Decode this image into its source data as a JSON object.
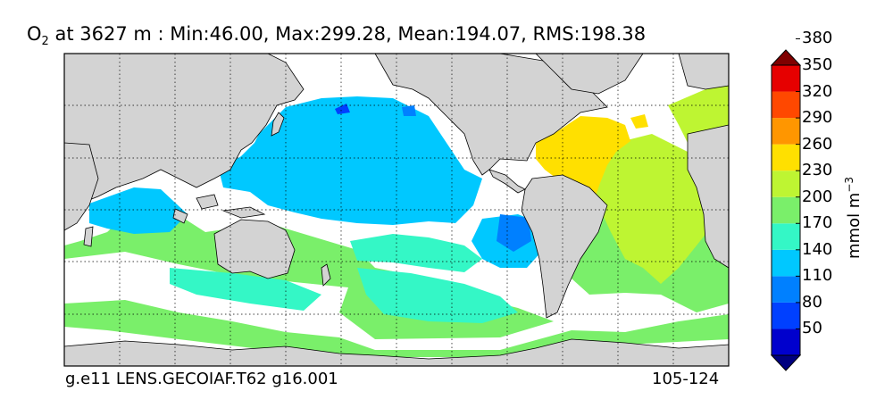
{
  "title": {
    "species": "O",
    "species_sub": "2",
    "text": " at 3627 m : Min:46.00, Max:299.28, Mean:194.07, RMS:198.38"
  },
  "footer": {
    "case": "g.e11 LENS.GECOIAF.T62 g16.001",
    "years": "105-124"
  },
  "colorbar": {
    "unit_main": "mmol m",
    "unit_exp": "−3",
    "ticks": [
      "380",
      "350",
      "320",
      "290",
      "260",
      "230",
      "200",
      "170",
      "140",
      "110",
      "80",
      "50"
    ],
    "colors": [
      "#000080",
      "#0000cd",
      "#0040ff",
      "#0080ff",
      "#00c8ff",
      "#34f7c6",
      "#7aef6a",
      "#bef532",
      "#ffe000",
      "#ff9600",
      "#ff4800",
      "#e60000",
      "#800000"
    ],
    "extend": "both"
  },
  "map": {
    "land_color": "#d3d3d3",
    "ocean_missing_color": "#ffffff",
    "gridlines": "dotted",
    "projection": "cylindrical, Pacific-centred"
  }
}
